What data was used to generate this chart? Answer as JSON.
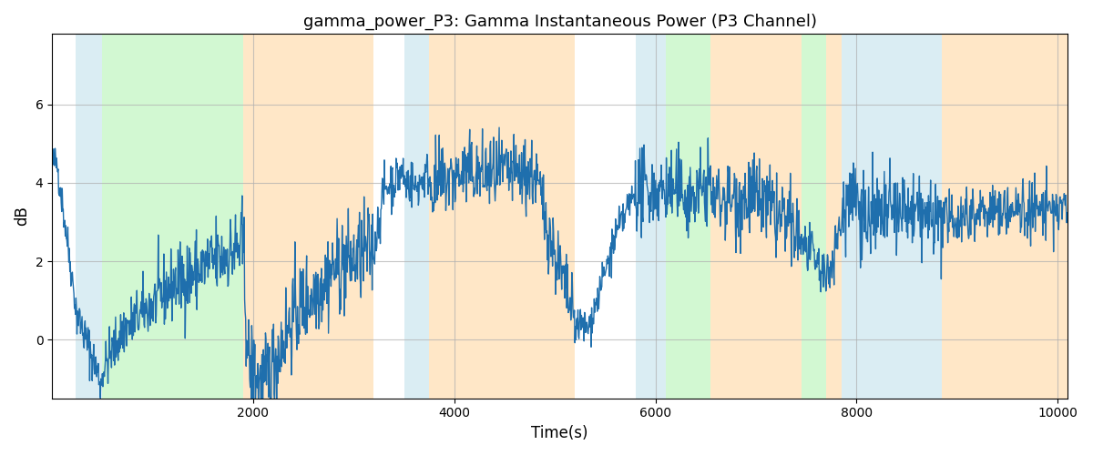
{
  "title": "gamma_power_P3: Gamma Instantaneous Power (P3 Channel)",
  "xlabel": "Time(s)",
  "ylabel": "dB",
  "xlim": [
    0,
    10100
  ],
  "ylim": [
    -1.5,
    7.8
  ],
  "yticks": [
    0,
    2,
    4,
    6
  ],
  "xticks": [
    2000,
    4000,
    6000,
    8000,
    10000
  ],
  "line_color": "#1f6fad",
  "line_width": 1.0,
  "bg_regions": [
    {
      "xmin": 230,
      "xmax": 500,
      "color": "#add8e6",
      "alpha": 0.45
    },
    {
      "xmin": 500,
      "xmax": 1900,
      "color": "#90ee90",
      "alpha": 0.4
    },
    {
      "xmin": 1900,
      "xmax": 3200,
      "color": "#ffd59a",
      "alpha": 0.55
    },
    {
      "xmin": 3500,
      "xmax": 3750,
      "color": "#add8e6",
      "alpha": 0.45
    },
    {
      "xmin": 3750,
      "xmax": 5200,
      "color": "#ffd59a",
      "alpha": 0.55
    },
    {
      "xmin": 5800,
      "xmax": 6100,
      "color": "#add8e6",
      "alpha": 0.45
    },
    {
      "xmin": 6100,
      "xmax": 6550,
      "color": "#90ee90",
      "alpha": 0.4
    },
    {
      "xmin": 6550,
      "xmax": 7450,
      "color": "#ffd59a",
      "alpha": 0.55
    },
    {
      "xmin": 7450,
      "xmax": 7700,
      "color": "#90ee90",
      "alpha": 0.4
    },
    {
      "xmin": 7700,
      "xmax": 7850,
      "color": "#ffd59a",
      "alpha": 0.55
    },
    {
      "xmin": 7850,
      "xmax": 8850,
      "color": "#add8e6",
      "alpha": 0.45
    },
    {
      "xmin": 8850,
      "xmax": 10200,
      "color": "#ffd59a",
      "alpha": 0.55
    }
  ],
  "grid_color": "#b0b0b0",
  "grid_alpha": 0.7,
  "figsize": [
    12,
    5
  ],
  "dpi": 100,
  "seed": 42
}
